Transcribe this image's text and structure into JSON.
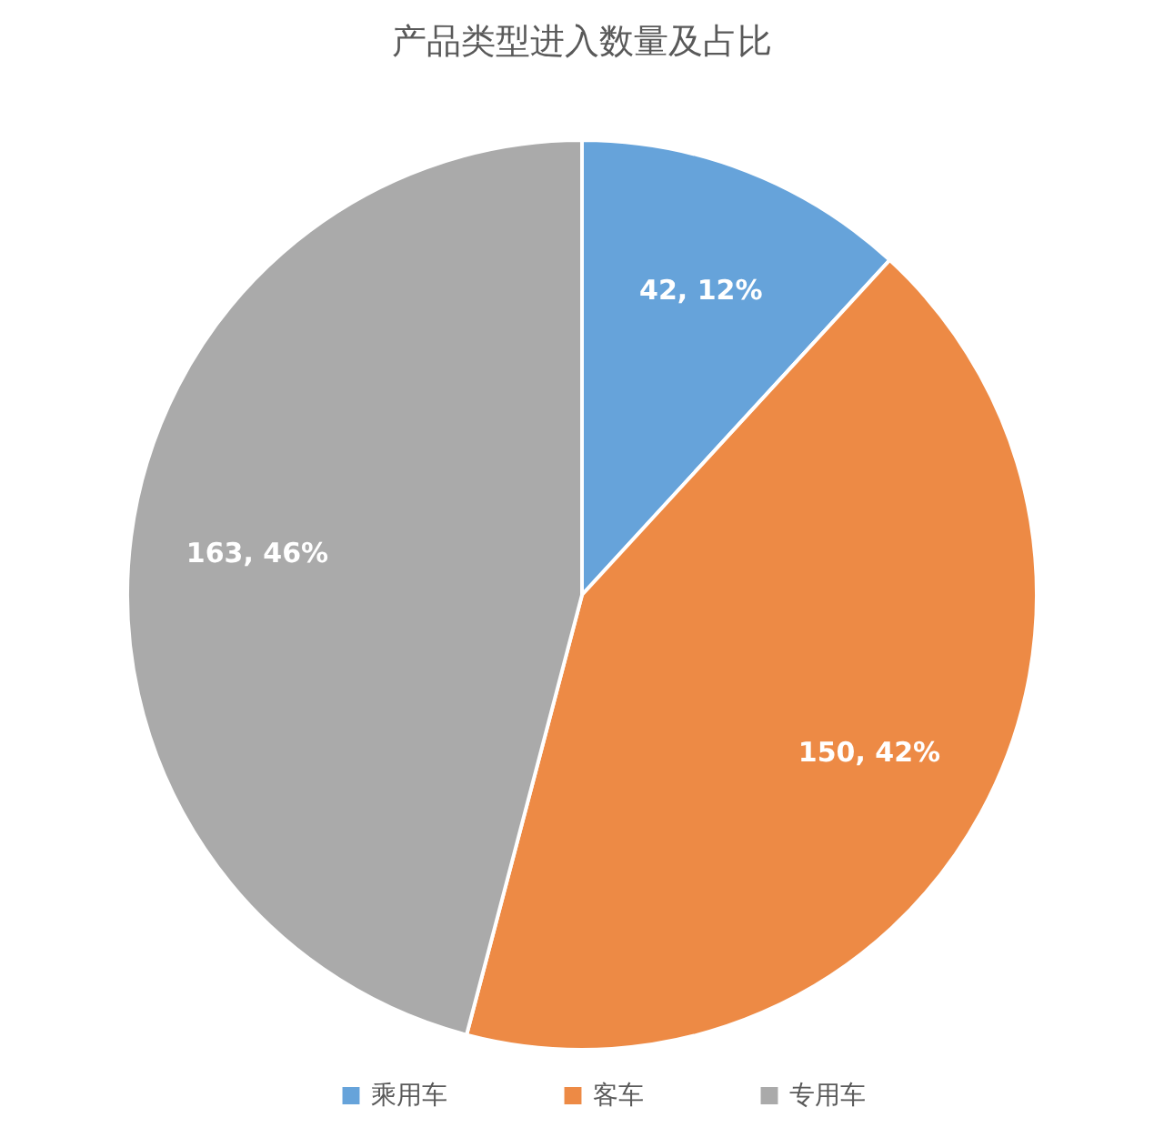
{
  "chart_data": {
    "type": "pie",
    "title": "产品类型进入数量及占比",
    "categories": [
      "乘用车",
      "客车",
      "专用车"
    ],
    "values": [
      42,
      150,
      163
    ],
    "colors": [
      "#66a3da",
      "#ed8a45",
      "#aaaaaa"
    ],
    "value_labels": [
      "42, 12%",
      "150, 42%",
      "163, 46%"
    ],
    "legend": "bottom"
  }
}
